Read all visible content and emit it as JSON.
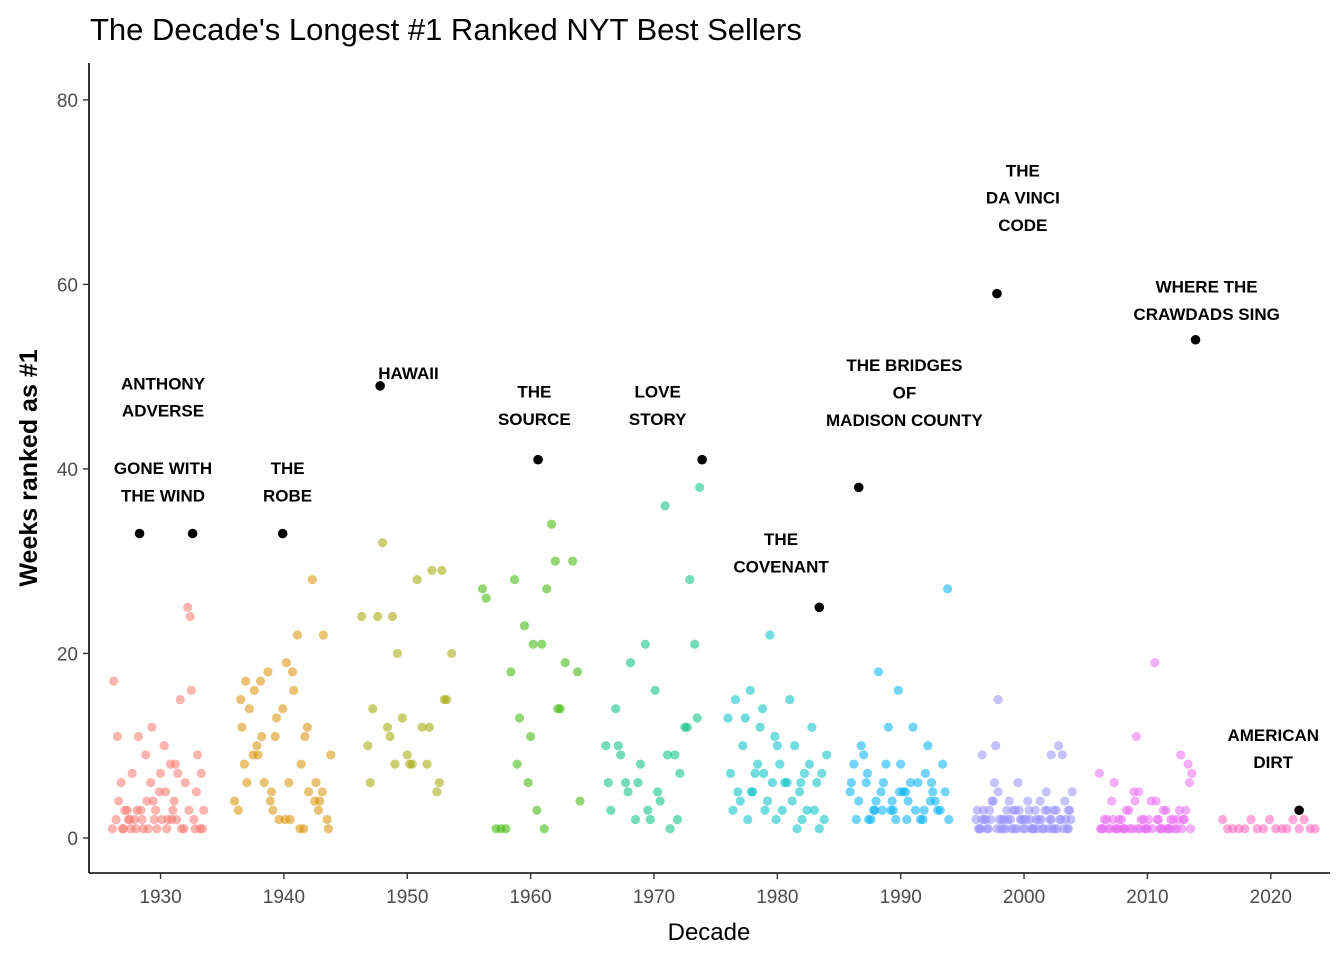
{
  "chart_data": {
    "type": "scatter",
    "title": "The Decade's Longest #1 Ranked NYT Best Sellers",
    "xlabel": "Decade",
    "ylabel": "Weeks ranked as #1",
    "xlim": [
      1924.2,
      2024.8
    ],
    "ylim": [
      -3.8,
      84
    ],
    "x_ticks": [
      1930,
      1940,
      1950,
      1960,
      1970,
      1980,
      1990,
      2000,
      2010,
      2020
    ],
    "y_ticks": [
      0,
      20,
      40,
      60,
      80
    ],
    "grid": false,
    "legend": "none",
    "point_alpha": 0.55,
    "highlight_color": "#000000",
    "decade_colors": {
      "1930": "#F8766D",
      "1940": "#D89000",
      "1950": "#A3A500",
      "1960": "#39B600",
      "1970": "#00BF7D",
      "1980": "#00BFC4",
      "1990": "#00B0F6",
      "2000": "#9590FF",
      "2010": "#E76BF3",
      "2020": "#FF62BC"
    },
    "highlighted_books": [
      {
        "year": 1928.3,
        "weeks": 33,
        "label": "GONE WITH THE WIND"
      },
      {
        "year": 1932.6,
        "weeks": 33,
        "label": "ANTHONY ADVERSE"
      },
      {
        "year": 1939.9,
        "weeks": 33,
        "label": "THE ROBE"
      },
      {
        "year": 1947.8,
        "weeks": 49,
        "label": "HAWAII"
      },
      {
        "year": 1960.6,
        "weeks": 41,
        "label": "THE SOURCE"
      },
      {
        "year": 1973.9,
        "weeks": 41,
        "label": "LOVE STORY"
      },
      {
        "year": 1983.4,
        "weeks": 25,
        "label": "THE COVENANT"
      },
      {
        "year": 1986.6,
        "weeks": 38,
        "label": "THE BRIDGES OF MADISON COUNTY"
      },
      {
        "year": 1997.8,
        "weeks": 59,
        "label": "THE DA VINCI CODE"
      },
      {
        "year": 2013.9,
        "weeks": 54,
        "label": "WHERE THE CRAWDADS SING"
      },
      {
        "year": 2022.3,
        "weeks": 3,
        "label": "AMERICAN DIRT"
      }
    ],
    "annotations": [
      {
        "lines": [
          "ANTHONY",
          "ADVERSE"
        ],
        "year": 1930.2,
        "weeks": 47.8
      },
      {
        "lines": [
          "GONE WITH",
          "THE WIND"
        ],
        "year": 1930.2,
        "weeks": 38.6
      },
      {
        "lines": [
          "THE",
          "ROBE"
        ],
        "year": 1940.3,
        "weeks": 38.6
      },
      {
        "lines": [
          "HAWAII"
        ],
        "year": 1950.1,
        "weeks": 50.4
      },
      {
        "lines": [
          "THE",
          "SOURCE"
        ],
        "year": 1960.3,
        "weeks": 46.9
      },
      {
        "lines": [
          "LOVE",
          "STORY"
        ],
        "year": 1970.3,
        "weeks": 46.9
      },
      {
        "lines": [
          "THE",
          "COVENANT"
        ],
        "year": 1980.3,
        "weeks": 30.9
      },
      {
        "lines": [
          "THE BRIDGES",
          "OF",
          "MADISON COUNTY"
        ],
        "year": 1990.3,
        "weeks": 48.3
      },
      {
        "lines": [
          "THE",
          "DA VINCI",
          "CODE"
        ],
        "year": 1999.9,
        "weeks": 69.4
      },
      {
        "lines": [
          "WHERE THE",
          "CRAWDADS SING"
        ],
        "year": 2014.8,
        "weeks": 58.3
      },
      {
        "lines": [
          "AMERICAN",
          "DIRT"
        ],
        "year": 2020.2,
        "weeks": 9.7
      }
    ],
    "series": [
      {
        "decade": "1930",
        "x": [
          1926.1,
          1926.4,
          1926.6,
          1926.8,
          1927.0,
          1927.3,
          1927.5,
          1927.7,
          1928.0,
          1928.2,
          1928.5,
          1928.8,
          1929.0,
          1929.2,
          1929.6,
          1929.9,
          1930.1,
          1930.3,
          1930.5,
          1930.8,
          1931.1,
          1931.3,
          1931.6,
          1931.9,
          1932.2,
          1932.4,
          1932.7,
          1932.9,
          1933.2,
          1933.5,
          1926.2,
          1927.1,
          1927.9,
          1928.6,
          1929.4,
          1930.0,
          1930.9,
          1931.7,
          1932.5,
          1933.3,
          1926.5,
          1927.6,
          1928.4,
          1929.3,
          1930.6,
          1931.4,
          1932.3,
          1933.0,
          1926.9,
          1927.4,
          1928.9,
          1929.7,
          1930.4,
          1931.2,
          1932.0,
          1933.4,
          1928.1,
          1929.5,
          1932.8,
          1931.0
        ],
        "y": [
          1,
          2,
          4,
          6,
          1,
          3,
          2,
          7,
          1,
          11,
          2,
          9,
          1,
          6,
          3,
          5,
          2,
          10,
          1,
          8,
          4,
          2,
          15,
          1,
          25,
          24,
          2,
          5,
          1,
          3,
          17,
          3,
          2,
          1,
          4,
          7,
          2,
          1,
          16,
          7,
          11,
          1,
          3,
          12,
          2,
          7,
          3,
          9,
          1,
          2,
          4,
          1,
          5,
          8,
          6,
          1,
          3,
          2,
          1,
          3
        ]
      },
      {
        "decade": "1940",
        "x": [
          1936.0,
          1936.3,
          1936.6,
          1936.9,
          1937.2,
          1937.5,
          1937.8,
          1938.1,
          1938.4,
          1938.7,
          1939.0,
          1939.3,
          1939.6,
          1939.9,
          1940.2,
          1940.5,
          1940.8,
          1941.1,
          1941.4,
          1941.7,
          1942.0,
          1942.3,
          1942.6,
          1942.9,
          1943.2,
          1943.5,
          1943.8,
          1936.5,
          1937.0,
          1937.6,
          1938.2,
          1938.9,
          1939.4,
          1940.1,
          1940.7,
          1941.3,
          1941.9,
          1942.5,
          1943.1,
          1943.6,
          1936.8,
          1937.9,
          1939.1,
          1940.4,
          1941.6,
          1942.8
        ],
        "y": [
          4,
          3,
          12,
          17,
          14,
          9,
          10,
          17,
          6,
          18,
          5,
          11,
          2,
          14,
          19,
          2,
          16,
          22,
          8,
          11,
          5,
          28,
          6,
          4,
          22,
          2,
          9,
          15,
          6,
          16,
          11,
          4,
          13,
          2,
          18,
          1,
          12,
          4,
          5,
          1,
          8,
          9,
          3,
          6,
          1,
          3
        ]
      },
      {
        "decade": "1950",
        "x": [
          1946.3,
          1946.8,
          1947.2,
          1947.6,
          1948.0,
          1948.4,
          1948.8,
          1949.2,
          1949.6,
          1950.0,
          1950.4,
          1950.8,
          1951.2,
          1951.6,
          1952.0,
          1952.4,
          1952.8,
          1953.2,
          1953.6,
          1947.0,
          1948.6,
          1950.2,
          1951.8,
          1953.0,
          1949.0,
          1952.6
        ],
        "y": [
          24,
          10,
          14,
          24,
          32,
          12,
          24,
          20,
          13,
          9,
          8,
          28,
          12,
          8,
          29,
          5,
          29,
          15,
          20,
          6,
          11,
          8,
          12,
          15,
          8,
          6
        ]
      },
      {
        "decade": "1960",
        "x": [
          1956.1,
          1956.4,
          1957.2,
          1958.0,
          1958.4,
          1958.7,
          1959.1,
          1959.5,
          1959.8,
          1960.2,
          1960.5,
          1960.9,
          1961.3,
          1961.7,
          1962.0,
          1962.4,
          1962.8,
          1963.4,
          1964.0,
          1957.6,
          1958.9,
          1960.0,
          1961.1,
          1962.2,
          1963.8
        ],
        "y": [
          27,
          26,
          1,
          1,
          18,
          28,
          13,
          23,
          6,
          21,
          3,
          21,
          27,
          34,
          30,
          14,
          19,
          30,
          4,
          1,
          8,
          11,
          1,
          14,
          18
        ]
      },
      {
        "decade": "1970",
        "x": [
          1966.1,
          1966.5,
          1966.9,
          1967.3,
          1967.7,
          1968.1,
          1968.5,
          1968.9,
          1969.3,
          1969.7,
          1970.1,
          1970.5,
          1970.9,
          1971.3,
          1971.7,
          1972.1,
          1972.5,
          1972.9,
          1973.3,
          1973.7,
          1966.3,
          1967.1,
          1967.9,
          1968.7,
          1969.5,
          1970.3,
          1971.1,
          1971.9,
          1972.7,
          1973.5
        ],
        "y": [
          10,
          3,
          14,
          9,
          6,
          19,
          2,
          8,
          21,
          2,
          16,
          4,
          36,
          1,
          9,
          7,
          12,
          28,
          21,
          38,
          6,
          10,
          5,
          6,
          3,
          5,
          9,
          2,
          12,
          13
        ]
      },
      {
        "decade": "1980",
        "x": [
          1976.2,
          1976.6,
          1977.0,
          1977.4,
          1977.8,
          1978.2,
          1978.6,
          1979.0,
          1979.4,
          1979.8,
          1980.2,
          1980.6,
          1981.0,
          1981.4,
          1981.8,
          1982.2,
          1982.6,
          1983.0,
          1983.6,
          1984.0,
          1976.4,
          1977.2,
          1978.0,
          1978.8,
          1979.6,
          1980.4,
          1981.2,
          1982.0,
          1982.8,
          1983.8,
          1976.8,
          1977.6,
          1978.4,
          1979.2,
          1980.0,
          1980.8,
          1981.6,
          1982.4,
          1983.2,
          1976.0,
          1977.9,
          1979.9,
          1981.9,
          1983.4,
          1978.9
        ],
        "y": [
          7,
          15,
          4,
          13,
          16,
          7,
          12,
          3,
          22,
          11,
          8,
          6,
          15,
          10,
          5,
          7,
          8,
          3,
          7,
          9,
          3,
          10,
          5,
          14,
          6,
          3,
          4,
          2,
          12,
          2,
          5,
          2,
          8,
          4,
          10,
          6,
          1,
          3,
          6,
          13,
          5,
          2,
          6,
          1,
          7
        ]
      },
      {
        "decade": "1990",
        "x": [
          1986.2,
          1986.6,
          1987.0,
          1987.4,
          1987.8,
          1988.2,
          1988.6,
          1989.0,
          1989.4,
          1989.8,
          1990.2,
          1990.6,
          1991.0,
          1991.4,
          1991.8,
          1992.2,
          1992.6,
          1993.0,
          1993.4,
          1993.8,
          1986.4,
          1987.2,
          1988.0,
          1988.8,
          1989.6,
          1990.4,
          1991.2,
          1992.0,
          1992.8,
          1993.6,
          1986.8,
          1987.6,
          1988.4,
          1989.2,
          1990.0,
          1990.8,
          1991.6,
          1992.4,
          1993.2,
          1986.0,
          1987.9,
          1989.9,
          1991.9,
          1993.9,
          1988.5,
          1990.5,
          1992.5,
          1985.9,
          1987.3,
          1989.3
        ],
        "y": [
          8,
          4,
          9,
          2,
          3,
          18,
          6,
          12,
          3,
          16,
          5,
          4,
          12,
          6,
          2,
          10,
          5,
          3,
          8,
          27,
          2,
          6,
          4,
          8,
          2,
          5,
          3,
          7,
          4,
          5,
          10,
          2,
          5,
          3,
          8,
          6,
          2,
          4,
          3,
          6,
          3,
          5,
          3,
          2,
          3,
          2,
          6,
          5,
          7,
          4
        ]
      },
      {
        "decade": "2000",
        "x": [
          1996.1,
          1996.4,
          1996.7,
          1997.0,
          1997.3,
          1997.6,
          1997.9,
          1998.2,
          1998.5,
          1998.8,
          1999.1,
          1999.4,
          1999.7,
          2000.0,
          2000.3,
          2000.6,
          2000.9,
          2001.2,
          2001.5,
          2001.8,
          2002.1,
          2002.4,
          2002.7,
          2003.0,
          2003.3,
          2003.6,
          2003.9,
          1996.2,
          1996.5,
          1996.8,
          1997.1,
          1997.4,
          1997.7,
          1998.0,
          1998.3,
          1998.6,
          1998.9,
          1999.2,
          1999.5,
          1999.8,
          2000.1,
          2000.4,
          2000.7,
          2001.0,
          2001.3,
          2001.6,
          2001.9,
          2002.2,
          2002.5,
          2002.8,
          2003.1,
          2003.4,
          2003.7,
          1996.3,
          1996.9,
          1997.5,
          1998.1,
          1998.7,
          1999.3,
          1999.9,
          2000.5,
          2001.1,
          2001.7,
          2002.3,
          2002.9,
          2003.5,
          1996.6,
          1997.2,
          1997.8,
          1998.4,
          1999.0,
          1999.6,
          2000.2,
          2000.8,
          2001.4,
          2002.0,
          2002.6,
          2003.2,
          2003.8,
          1997.9,
          2002.2,
          1996.6,
          2003.6
        ],
        "y": [
          2,
          1,
          3,
          1,
          2,
          6,
          15,
          2,
          1,
          4,
          3,
          1,
          2,
          2,
          4,
          1,
          3,
          2,
          1,
          5,
          2,
          3,
          1,
          2,
          4,
          1,
          5,
          3,
          1,
          2,
          1,
          4,
          10,
          2,
          1,
          3,
          2,
          1,
          6,
          2,
          1,
          3,
          1,
          2,
          4,
          1,
          3,
          2,
          1,
          10,
          9,
          2,
          3,
          1,
          2,
          4,
          1,
          2,
          3,
          1,
          2,
          1,
          3,
          1,
          2,
          1,
          2,
          3,
          1,
          2,
          1,
          3,
          2,
          1,
          2,
          1,
          3,
          1,
          2,
          5,
          9,
          9,
          3
        ]
      },
      {
        "decade": "2010",
        "x": [
          2006.1,
          2006.4,
          2006.7,
          2007.0,
          2007.3,
          2007.6,
          2007.9,
          2008.2,
          2008.5,
          2008.8,
          2009.1,
          2009.4,
          2009.7,
          2010.0,
          2010.3,
          2010.6,
          2010.9,
          2011.2,
          2011.5,
          2011.8,
          2012.1,
          2012.4,
          2012.7,
          2013.0,
          2013.3,
          2013.6,
          2006.2,
          2006.5,
          2006.8,
          2007.1,
          2007.4,
          2007.7,
          2008.0,
          2008.3,
          2008.6,
          2008.9,
          2009.2,
          2009.5,
          2009.8,
          2010.1,
          2010.4,
          2010.7,
          2011.0,
          2011.3,
          2011.6,
          2011.9,
          2012.2,
          2012.5,
          2012.8,
          2013.1,
          2013.4,
          2006.3,
          2007.2,
          2008.1,
          2009.0,
          2009.9,
          2010.8,
          2011.7,
          2012.6,
          2013.5,
          2007.5,
          2009.3,
          2011.1,
          2012.9
        ],
        "y": [
          7,
          1,
          2,
          1,
          6,
          1,
          2,
          1,
          3,
          1,
          11,
          1,
          2,
          1,
          4,
          19,
          2,
          1,
          3,
          1,
          2,
          1,
          9,
          2,
          8,
          7,
          1,
          2,
          1,
          4,
          1,
          2,
          1,
          3,
          1,
          5,
          1,
          2,
          1,
          2,
          1,
          4,
          1,
          3,
          1,
          2,
          1,
          2,
          1,
          3,
          6,
          1,
          2,
          1,
          4,
          1,
          2,
          1,
          3,
          1,
          1,
          5,
          1,
          2
        ]
      },
      {
        "decade": "2020",
        "x": [
          2016.1,
          2016.5,
          2016.9,
          2017.4,
          2017.9,
          2018.4,
          2018.9,
          2019.4,
          2019.9,
          2020.4,
          2020.9,
          2021.3,
          2021.8,
          2022.3,
          2022.7,
          2023.2,
          2023.6
        ],
        "y": [
          2,
          1,
          1,
          1,
          1,
          2,
          1,
          1,
          2,
          1,
          1,
          1,
          2,
          1,
          2,
          1,
          1
        ]
      }
    ]
  }
}
